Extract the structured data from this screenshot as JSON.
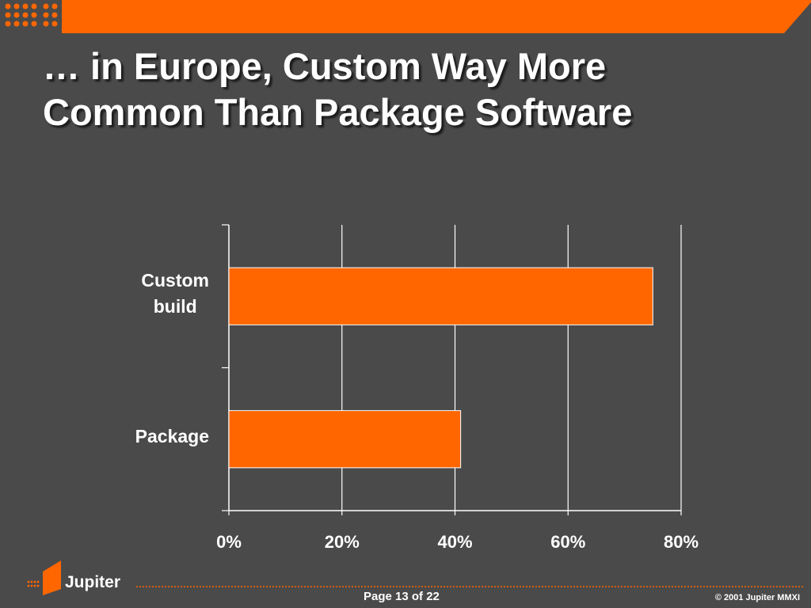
{
  "slide": {
    "title_lines": [
      "… in Europe, Custom Way More",
      "Common Than Package Software"
    ],
    "accent_color": "#ff6600",
    "background_color": "#4a4a4a"
  },
  "chart_data": {
    "type": "bar",
    "orientation": "horizontal",
    "categories": [
      "Custom build",
      "Package"
    ],
    "category_label_lines": [
      [
        "Custom",
        "build"
      ],
      [
        "Package"
      ]
    ],
    "values": [
      75,
      41
    ],
    "unit": "%",
    "xlim": [
      0,
      80
    ],
    "xticks": [
      "0%",
      "20%",
      "40%",
      "60%",
      "80%"
    ],
    "grid": true,
    "legend": "none",
    "title": "",
    "xlabel": "",
    "ylabel": "",
    "bar_color": "#ff6600"
  },
  "footer": {
    "brand": "Jupiter",
    "page": "Page 13 of 22",
    "copyright": "© 2001 Jupiter MMXI"
  }
}
